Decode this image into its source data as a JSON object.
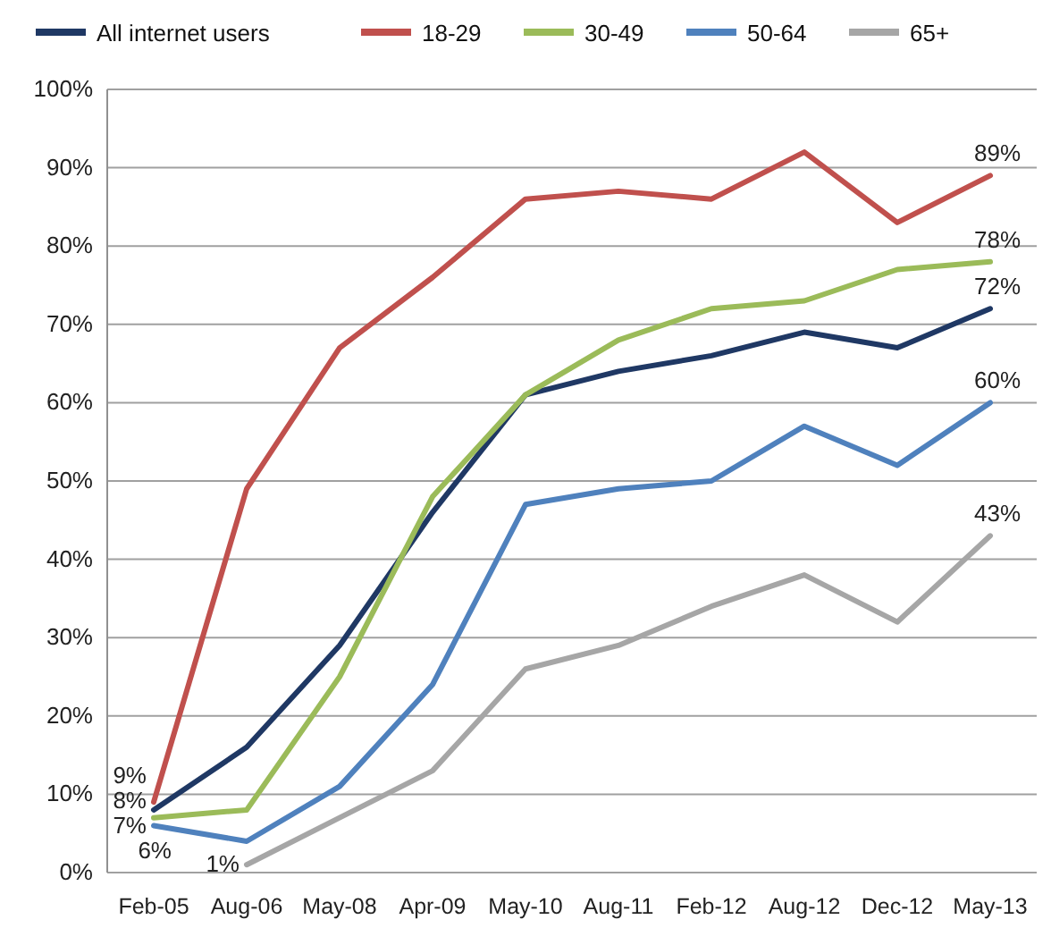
{
  "chart_data": {
    "type": "line",
    "categories": [
      "Feb-05",
      "Aug-06",
      "May-08",
      "Apr-09",
      "May-10",
      "Aug-11",
      "Feb-12",
      "Aug-12",
      "Dec-12",
      "May-13"
    ],
    "series": [
      {
        "name": "All internet users",
        "color": "#1f3864",
        "values": [
          8,
          16,
          29,
          46,
          61,
          64,
          66,
          69,
          67,
          72
        ],
        "value_labels": [
          "8%",
          null,
          null,
          null,
          null,
          null,
          null,
          null,
          null,
          "72%"
        ]
      },
      {
        "name": "18-29",
        "color": "#c0504d",
        "values": [
          9,
          49,
          67,
          76,
          86,
          87,
          86,
          92,
          83,
          89
        ],
        "value_labels": [
          "9%",
          null,
          null,
          null,
          null,
          null,
          null,
          null,
          null,
          "89%"
        ]
      },
      {
        "name": "30-49",
        "color": "#9bbb59",
        "values": [
          7,
          8,
          25,
          48,
          61,
          68,
          72,
          73,
          77,
          78
        ],
        "value_labels": [
          "7%",
          null,
          null,
          null,
          null,
          null,
          null,
          null,
          null,
          "78%"
        ]
      },
      {
        "name": "50-64",
        "color": "#4f81bd",
        "values": [
          6,
          4,
          11,
          24,
          47,
          49,
          50,
          57,
          52,
          60
        ],
        "value_labels": [
          "6%",
          null,
          null,
          null,
          null,
          null,
          null,
          null,
          null,
          "60%"
        ]
      },
      {
        "name": "65+",
        "color": "#a6a6a6",
        "values": [
          null,
          1,
          7,
          13,
          26,
          29,
          34,
          38,
          32,
          43
        ],
        "value_labels": [
          null,
          "1%",
          null,
          null,
          null,
          null,
          null,
          null,
          null,
          "43%"
        ]
      }
    ],
    "ylim": [
      0,
      100
    ],
    "yticks": [
      {
        "value": 0,
        "label": "0%"
      },
      {
        "value": 10,
        "label": "10%"
      },
      {
        "value": 20,
        "label": "20%"
      },
      {
        "value": 30,
        "label": "30%"
      },
      {
        "value": 40,
        "label": "40%"
      },
      {
        "value": 50,
        "label": "50%"
      },
      {
        "value": 60,
        "label": "60%"
      },
      {
        "value": 70,
        "label": "70%"
      },
      {
        "value": 80,
        "label": "80%"
      },
      {
        "value": 90,
        "label": "90%"
      },
      {
        "value": 100,
        "label": "100%"
      }
    ],
    "grid": "y",
    "legend": "top",
    "marker": "none",
    "line_style": "solid"
  }
}
